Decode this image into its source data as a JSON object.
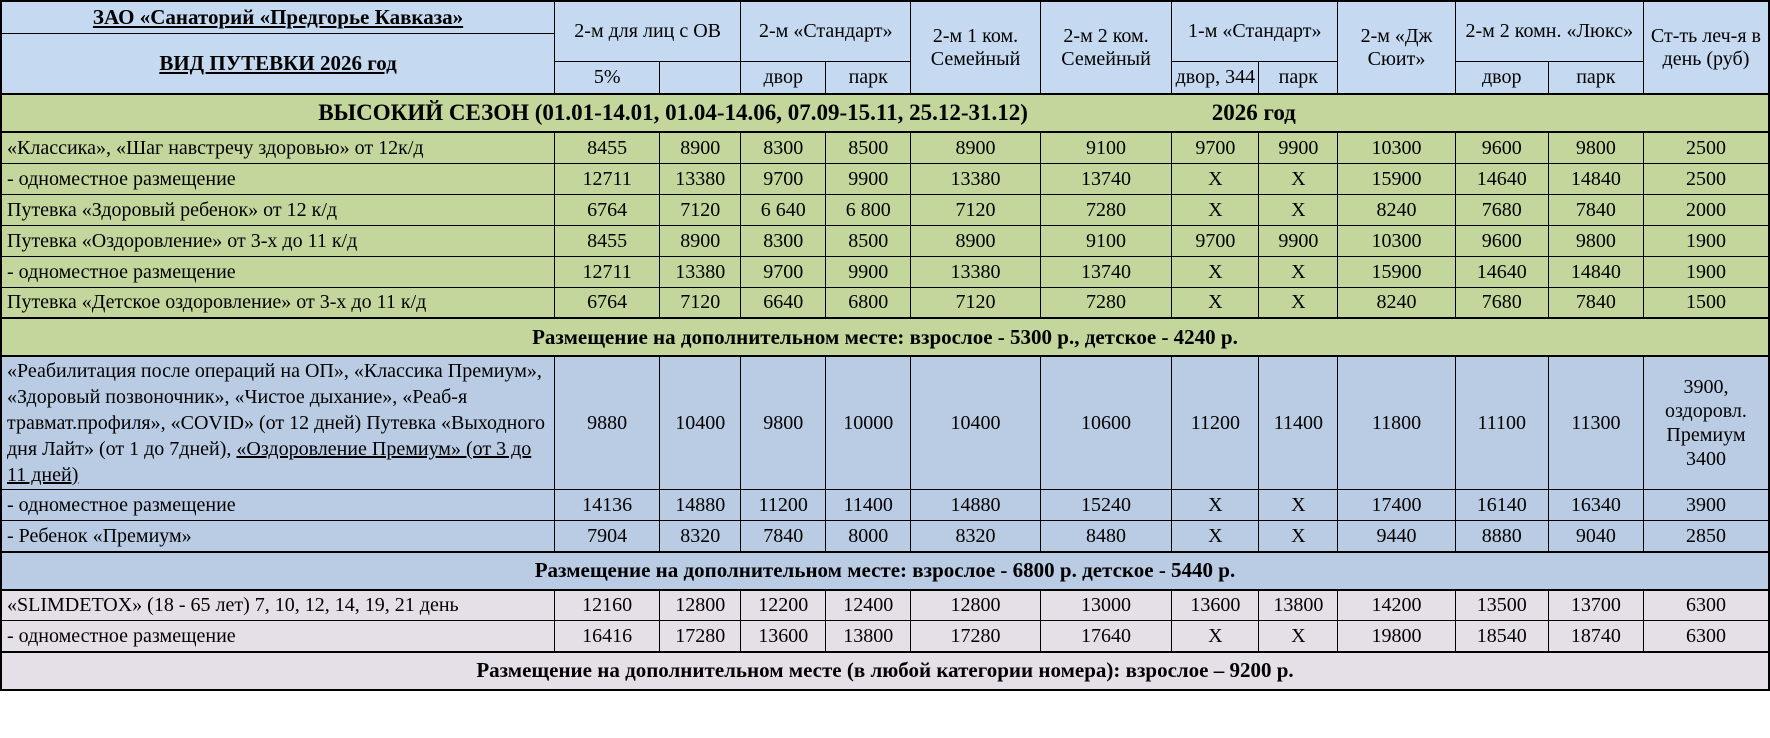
{
  "header": {
    "org_title": "ЗАО «Санаторий «Предгорье Кавказа»",
    "subtitle": "ВИД ПУТЕВКИ 2026 год",
    "groups": [
      {
        "label": "2-м для лиц с ОВ",
        "subs": [
          "5%",
          ""
        ]
      },
      {
        "label": "2-м «Стандарт»",
        "subs": [
          "двор",
          "парк"
        ]
      },
      {
        "label": "2-м  1 ком. Семейный"
      },
      {
        "label": "2-м 2 ком. Семейный"
      },
      {
        "label": "1-м «Стандарт»",
        "subs": [
          "двор, 344",
          "парк"
        ]
      },
      {
        "label": "2-м «Дж Сюит»"
      },
      {
        "label": "2-м 2 комн. «Люкс»",
        "subs": [
          "двор",
          "парк"
        ]
      },
      {
        "label": "Ст-ть леч-я в день (руб)"
      }
    ]
  },
  "season": {
    "label": "ВЫСОКИЙ СЕЗОН (01.01-14.01, 01.04-14.06, 07.09-15.11, 25.12-31.12)",
    "year": "2026 год"
  },
  "colors": {
    "header_bg": "#c5d9f1",
    "green_bg": "#c3d69b",
    "blue_bg": "#b9cce4",
    "lavender_bg": "#e5e0e8",
    "border": "#000000"
  },
  "sections": [
    {
      "theme": "green",
      "rows": [
        {
          "label": "«Классика», «Шаг навстречу здоровью»  от 12к/д",
          "values": [
            "8455",
            "8900",
            "8300",
            "8500",
            "8900",
            "9100",
            "9700",
            "9900",
            "10300",
            "9600",
            "9800",
            "2500"
          ]
        },
        {
          "label": "- одноместное размещение",
          "values": [
            "12711",
            "13380",
            "9700",
            "9900",
            "13380",
            "13740",
            "X",
            "X",
            "15900",
            "14640",
            "14840",
            "2500"
          ]
        },
        {
          "label": "Путевка «Здоровый ребенок» от 12 к/д",
          "values": [
            "6764",
            "7120",
            "6 640",
            "6 800",
            "7120",
            "7280",
            "X",
            "X",
            "8240",
            "7680",
            "7840",
            "2000"
          ]
        },
        {
          "label": "Путевка «Оздоровление» от 3-х до 11 к/д",
          "values": [
            "8455",
            "8900",
            "8300",
            "8500",
            "8900",
            "9100",
            "9700",
            "9900",
            "10300",
            "9600",
            "9800",
            "1900"
          ]
        },
        {
          "label": "- одноместное размещение",
          "values": [
            "12711",
            "13380",
            "9700",
            "9900",
            "13380",
            "13740",
            "X",
            "X",
            "15900",
            "14640",
            "14840",
            "1900"
          ]
        },
        {
          "label": "Путевка «Детское оздоровление» от 3-х до 11 к/д",
          "values": [
            "6764",
            "7120",
            "6640",
            "6800",
            "7120",
            "7280",
            "X",
            "X",
            "8240",
            "7680",
            "7840",
            "1500"
          ]
        }
      ],
      "footer": "Размещение на дополнительном месте: взрослое - 5300 р., детское - 4240 р."
    },
    {
      "theme": "blue",
      "rows": [
        {
          "label": "«Реабилитация после операций на ОП», «Классика Премиум», «Здоровый позвоночник», «Чистое дыхание», «Реаб-я травмат.профиля», «COVID» (от 12 дней) Путевка «Выходного дня Лайт» (от 1 до 7дней), ",
          "label_underlined": "«Оздоровление Премиум» (от 3 до 11 дней)",
          "values": [
            "9880",
            "10400",
            "9800",
            "10000",
            "10400",
            "10600",
            "11200",
            "11400",
            "11800",
            "11100",
            "11300",
            "3900, оздоровл. Премиум 3400"
          ]
        },
        {
          "label": "- одноместное размещение",
          "values": [
            "14136",
            "14880",
            "11200",
            "11400",
            "14880",
            "15240",
            "X",
            "X",
            "17400",
            "16140",
            "16340",
            "3900"
          ]
        },
        {
          "label": "- Ребенок «Премиум»",
          "values": [
            "7904",
            "8320",
            "7840",
            "8000",
            "8320",
            "8480",
            "X",
            "X",
            "9440",
            "8880",
            "9040",
            "2850"
          ]
        }
      ],
      "footer": "Размещение на дополнительном месте: взрослое - 6800 р. детское - 5440 р."
    },
    {
      "theme": "lavender",
      "rows": [
        {
          "label": "«SLIMDETOX» (18 - 65 лет) 7, 10, 12, 14, 19, 21 день",
          "values": [
            "12160",
            "12800",
            "12200",
            "12400",
            "12800",
            "13000",
            "13600",
            "13800",
            "14200",
            "13500",
            "13700",
            "6300"
          ]
        },
        {
          "label": "- одноместное размещение",
          "values": [
            "16416",
            "17280",
            "13600",
            "13800",
            "17280",
            "17640",
            "X",
            "X",
            "19800",
            "18540",
            "18740",
            "6300"
          ]
        }
      ],
      "footer": "Размещение на дополнительном месте (в любой категории номера): взрослое – 9200 р."
    }
  ]
}
